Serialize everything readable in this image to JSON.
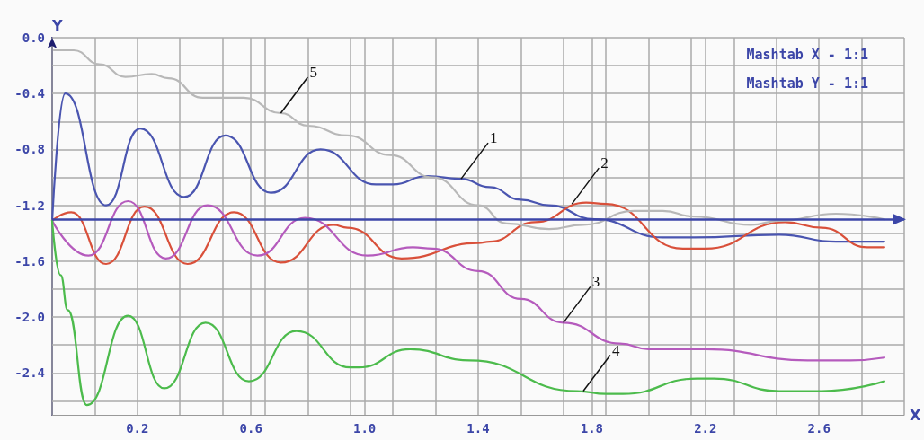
{
  "chart_data": {
    "type": "line",
    "xlabel": "X",
    "ylabel": "Y",
    "annotations": [
      "Mashtab X - 1:1",
      "Mashtab Y - 1:1",
      {
        "text": "1",
        "x": 1.34,
        "y": -1.01
      },
      {
        "text": "2",
        "x": 1.73,
        "y": -1.19
      },
      {
        "text": "3",
        "x": 1.7,
        "y": -2.04
      },
      {
        "text": "4",
        "x": 1.77,
        "y": -2.53
      },
      {
        "text": "5",
        "x": 0.705,
        "y": -0.54
      }
    ],
    "xlim": [
      -0.1,
      2.9
    ],
    "xticks": [
      {
        "value": -0.1,
        "label": null
      },
      {
        "value": 0.05,
        "label": null
      },
      0.2,
      {
        "value": 0.35,
        "label": null
      },
      {
        "value": 0.5,
        "label": null
      },
      0.6,
      {
        "value": 0.65,
        "label": null
      },
      {
        "value": 0.8,
        "label": null
      },
      {
        "value": 0.95,
        "label": null
      },
      {
        "value": 1,
        "label": "1.0"
      },
      {
        "value": 1.1,
        "label": null
      },
      {
        "value": 1.25,
        "label": null
      },
      1.4,
      {
        "value": 1.55,
        "label": null
      },
      {
        "value": 1.7,
        "label": null
      },
      1.8,
      {
        "value": 1.85,
        "label": null
      },
      {
        "value": 2,
        "label": null
      },
      {
        "value": 2.15,
        "label": null
      },
      2.2,
      {
        "value": 2.3,
        "label": null
      },
      {
        "value": 2.45,
        "label": null
      },
      2.6,
      {
        "value": 2.75,
        "label": null
      },
      {
        "value": 2.9,
        "label": null
      }
    ],
    "ylim": [
      -2.7,
      0
    ],
    "yticks": [
      {
        "value": 0,
        "label": "0.0"
      },
      {
        "value": -0.2,
        "label": null
      },
      -0.4,
      {
        "value": -0.6,
        "label": null
      },
      -0.8,
      {
        "value": -1,
        "label": null
      },
      -1.2,
      {
        "value": -1.4,
        "label": null
      },
      -1.6,
      {
        "value": -1.8,
        "label": null
      },
      {
        "value": -2,
        "label": "-2.0"
      },
      {
        "value": -2.2,
        "label": null
      },
      -2.4,
      {
        "value": -2.6,
        "label": null
      }
    ],
    "grid": true,
    "marker": "none",
    "line_style": "solid",
    "ref_lines": [
      {
        "axis": "y",
        "value": -1.3,
        "color": "#3c46a8"
      }
    ],
    "series": [
      {
        "color": "#4a55b0",
        "x": [
          -0.1,
          -0.054,
          0.09,
          0.21,
          0.365,
          0.51,
          0.67,
          0.845,
          1.04,
          1.1,
          1.22,
          1.34,
          1.44,
          1.55,
          1.65,
          1.81,
          2.05,
          2.16,
          2.46,
          2.66,
          2.83
        ],
        "values": [
          -1.31,
          -0.4,
          -1.2,
          -0.65,
          -1.14,
          -0.7,
          -1.11,
          -0.8,
          -1.05,
          -1.05,
          -0.99,
          -1.01,
          -1.07,
          -1.16,
          -1.2,
          -1.3,
          -1.43,
          -1.43,
          -1.41,
          -1.46,
          -1.46
        ]
      },
      {
        "color": "#d9503a",
        "x": [
          -0.1,
          -0.033,
          0.09,
          0.225,
          0.377,
          0.54,
          0.705,
          0.89,
          0.94,
          1.13,
          1.4,
          1.44,
          1.6,
          1.78,
          1.85,
          2.12,
          2.2,
          2.48,
          2.61,
          2.77,
          2.83
        ],
        "values": [
          -1.31,
          -1.25,
          -1.62,
          -1.21,
          -1.62,
          -1.25,
          -1.61,
          -1.34,
          -1.36,
          -1.58,
          -1.47,
          -1.46,
          -1.32,
          -1.18,
          -1.19,
          -1.51,
          -1.51,
          -1.32,
          -1.36,
          -1.5,
          -1.5
        ]
      },
      {
        "color": "#b55bbd",
        "x": [
          -0.1,
          0.028,
          0.167,
          0.3,
          0.447,
          0.623,
          0.79,
          1.01,
          1.17,
          1.24,
          1.4,
          1.55,
          1.7,
          1.9,
          2.0,
          2.2,
          2.56,
          2.71,
          2.83
        ],
        "values": [
          -1.31,
          -1.56,
          -1.17,
          -1.58,
          -1.2,
          -1.56,
          -1.29,
          -1.56,
          -1.5,
          -1.51,
          -1.67,
          -1.87,
          -2.04,
          -2.19,
          -2.23,
          -2.23,
          -2.31,
          -2.31,
          -2.29
        ]
      },
      {
        "color": "#4cbb4c",
        "x": [
          -0.1,
          -0.07,
          -0.045,
          0.022,
          0.167,
          0.295,
          0.44,
          0.593,
          0.76,
          0.95,
          0.98,
          1.16,
          1.37,
          1.75,
          1.85,
          1.91,
          2.17,
          2.23,
          2.46,
          2.61,
          2.83
        ],
        "values": [
          -1.31,
          -1.7,
          -1.95,
          -2.63,
          -1.99,
          -2.51,
          -2.04,
          -2.46,
          -2.1,
          -2.36,
          -2.36,
          -2.23,
          -2.31,
          -2.53,
          -2.55,
          -2.55,
          -2.44,
          -2.44,
          -2.53,
          -2.53,
          -2.46
        ]
      },
      {
        "color": "#b8b8b8",
        "x": [
          -0.094,
          -0.024,
          0.067,
          0.158,
          0.25,
          0.31,
          0.43,
          0.575,
          0.705,
          0.8,
          0.94,
          1.09,
          1.24,
          1.4,
          1.5,
          1.65,
          1.77,
          1.95,
          2.05,
          2.16,
          2.36,
          2.46,
          2.66,
          2.83
        ],
        "values": [
          -0.09,
          -0.09,
          -0.19,
          -0.28,
          -0.26,
          -0.29,
          -0.43,
          -0.43,
          -0.54,
          -0.63,
          -0.7,
          -0.84,
          -1.0,
          -1.2,
          -1.33,
          -1.37,
          -1.34,
          -1.24,
          -1.24,
          -1.28,
          -1.34,
          -1.31,
          -1.26,
          -1.3
        ]
      }
    ]
  }
}
